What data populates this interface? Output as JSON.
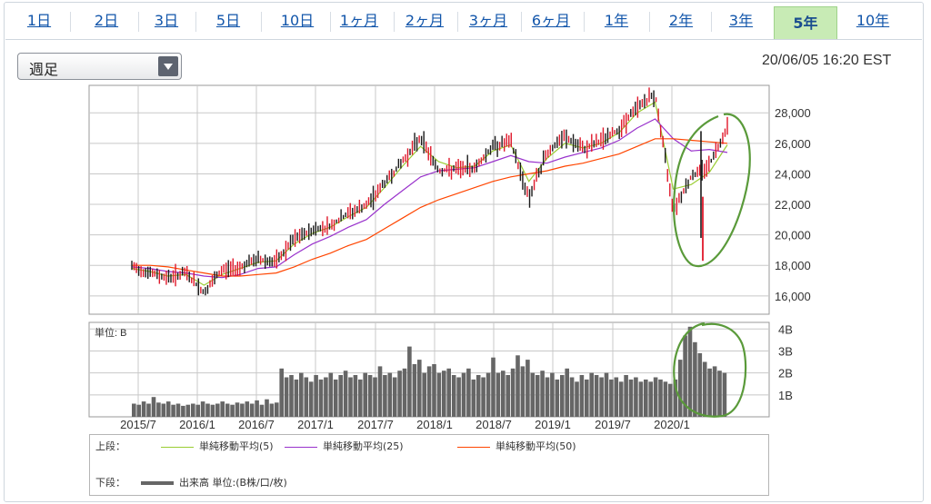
{
  "tabs": [
    {
      "label": "1日",
      "active": false
    },
    {
      "label": "2日",
      "active": false
    },
    {
      "label": "3日",
      "active": false
    },
    {
      "label": "5日",
      "active": false
    },
    {
      "label": "10日",
      "active": false
    },
    {
      "label": "1ヶ月",
      "active": false
    },
    {
      "label": "2ヶ月",
      "active": false
    },
    {
      "label": "3ヶ月",
      "active": false
    },
    {
      "label": "6ヶ月",
      "active": false
    },
    {
      "label": "1年",
      "active": false
    },
    {
      "label": "2年",
      "active": false
    },
    {
      "label": "3年",
      "active": false
    },
    {
      "label": "5年",
      "active": true
    },
    {
      "label": "10年",
      "active": false
    }
  ],
  "period_select": {
    "value": "週足"
  },
  "timestamp": "20/06/05 16:20 EST",
  "colors": {
    "up": "#e0182b",
    "down": "#1a1a1a",
    "ma5": "#9acd32",
    "ma25": "#9932cc",
    "ma50": "#ff4500",
    "volume": "#666666",
    "grid": "#c8c8c8",
    "annotation": "#5a9a3a",
    "tab_active_bg": "#c8ebb5"
  },
  "legend": {
    "upper_label": "上段：",
    "lower_label": "下段：",
    "ma5": "単純移動平均(5)",
    "ma25": "単純移動平均(25)",
    "ma50": "単純移動平均(50)",
    "volume": "出来高 単位:(B株/口/枚)"
  },
  "chart_data": [
    {
      "type": "line",
      "title": "",
      "x_ticks": [
        "2015/7",
        "2016/1",
        "2016/7",
        "2017/1",
        "2017/7",
        "2018/1",
        "2018/7",
        "2019/1",
        "2019/7",
        "2020/1"
      ],
      "y_ticks": [
        16000,
        18000,
        20000,
        22000,
        24000,
        26000,
        28000
      ],
      "ylim": [
        14800,
        29800
      ],
      "x": [
        "2015/6",
        "2015/8",
        "2015/10",
        "2015/12",
        "2016/2",
        "2016/4",
        "2016/6",
        "2016/8",
        "2016/10",
        "2016/12",
        "2017/2",
        "2017/4",
        "2017/6",
        "2017/8",
        "2017/10",
        "2017/12",
        "2018/1",
        "2018/2",
        "2018/4",
        "2018/6",
        "2018/8",
        "2018/10",
        "2018/12",
        "2019/2",
        "2019/4",
        "2019/6",
        "2019/8",
        "2019/10",
        "2019/12",
        "2020/2",
        "2020/3",
        "2020/4",
        "2020/5",
        "2020/6"
      ],
      "series": [
        {
          "name": "price",
          "values": [
            17900,
            17500,
            17200,
            17500,
            16200,
            17700,
            17900,
            18400,
            18200,
            19700,
            20300,
            20600,
            21400,
            21900,
            23400,
            24800,
            26400,
            24200,
            24300,
            24400,
            25800,
            26100,
            22400,
            25400,
            26400,
            25600,
            26200,
            26900,
            28400,
            29200,
            21700,
            23800,
            24600,
            27100
          ]
        },
        {
          "name": "単純移動平均(5)",
          "values": [
            17800,
            17600,
            17300,
            17400,
            16700,
            17400,
            17800,
            18200,
            18300,
            19400,
            20100,
            20500,
            21200,
            21800,
            23100,
            24500,
            25800,
            24800,
            24400,
            24500,
            25500,
            25900,
            23500,
            25000,
            26000,
            25700,
            26000,
            26700,
            28000,
            28700,
            23000,
            23300,
            24100,
            25900
          ]
        },
        {
          "name": "単純移動平均(25)",
          "values": [
            17900,
            17800,
            17600,
            17500,
            17300,
            17200,
            17400,
            17800,
            17900,
            18700,
            19400,
            19900,
            20500,
            21000,
            22000,
            22900,
            23800,
            24200,
            24300,
            24400,
            24800,
            25200,
            24800,
            24700,
            25100,
            25400,
            25700,
            26200,
            27000,
            27600,
            26300,
            25500,
            25600,
            25400
          ]
        },
        {
          "name": "単純移動平均(50)",
          "values": [
            18000,
            18000,
            17900,
            17700,
            17500,
            17300,
            17300,
            17400,
            17500,
            17900,
            18400,
            18800,
            19300,
            19700,
            20400,
            21100,
            21800,
            22300,
            22700,
            23100,
            23500,
            23800,
            24000,
            24200,
            24500,
            24700,
            25000,
            25300,
            25800,
            26300,
            26300,
            26200,
            26100,
            26000
          ]
        }
      ]
    },
    {
      "type": "bar",
      "title": "",
      "unit_label": "単位: B",
      "y_ticks": [
        "1B",
        "2B",
        "3B",
        "4B"
      ],
      "ylim": [
        0,
        4.3
      ],
      "x_ticks": [
        "2015/7",
        "2016/1",
        "2016/7",
        "2017/1",
        "2017/7",
        "2018/1",
        "2018/7",
        "2019/1",
        "2019/7",
        "2020/1"
      ],
      "series": [
        {
          "name": "出来高",
          "values": [
            0.6,
            0.55,
            0.7,
            0.6,
            0.9,
            0.65,
            0.6,
            0.7,
            0.55,
            0.6,
            0.5,
            0.55,
            0.6,
            0.55,
            0.7,
            0.6,
            0.55,
            0.6,
            0.7,
            0.6,
            0.55,
            0.65,
            0.6,
            0.7,
            0.6,
            0.75,
            0.55,
            0.8,
            0.6,
            0.65,
            2.2,
            1.8,
            1.9,
            1.7,
            2.0,
            1.8,
            1.6,
            1.9,
            1.7,
            1.8,
            2.0,
            1.7,
            1.9,
            2.1,
            1.8,
            1.9,
            1.7,
            2.0,
            1.9,
            1.8,
            2.3,
            1.9,
            2.0,
            1.8,
            2.1,
            2.2,
            3.2,
            2.4,
            2.6,
            2.0,
            2.3,
            2.4,
            2.0,
            2.1,
            2.2,
            1.9,
            1.8,
            2.0,
            2.2,
            1.7,
            1.9,
            1.8,
            2.0,
            2.7,
            2.0,
            2.1,
            1.9,
            2.2,
            2.8,
            2.3,
            2.6,
            2.0,
            1.9,
            2.1,
            1.8,
            2.0,
            1.7,
            1.9,
            2.2,
            1.8,
            1.6,
            1.9,
            1.7,
            2.0,
            1.9,
            1.8,
            2.0,
            1.7,
            1.8,
            1.6,
            1.9,
            1.7,
            1.8,
            1.6,
            1.7,
            1.6,
            1.8,
            1.7,
            1.6,
            1.5,
            1.7,
            2.6,
            3.7,
            4.1,
            3.4,
            2.9,
            2.5,
            2.2,
            2.3,
            2.1,
            2.0
          ]
        }
      ]
    }
  ]
}
